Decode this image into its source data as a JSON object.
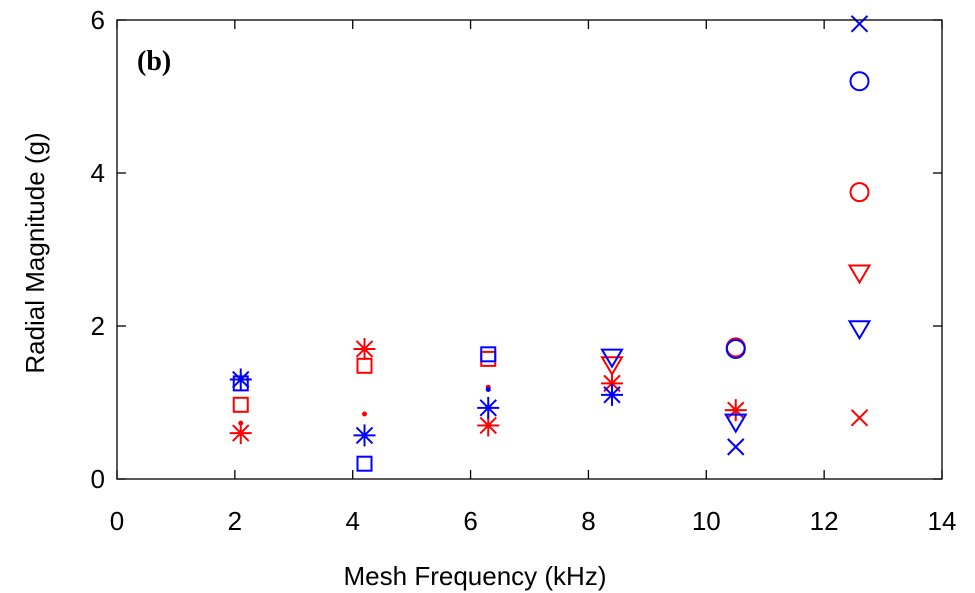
{
  "chart_data": {
    "type": "scatter",
    "panel_label": "(b)",
    "xlabel": "Mesh Frequency (kHz)",
    "ylabel": "Radial Magnitude (g)",
    "xlim": [
      0,
      14
    ],
    "ylim": [
      0,
      6
    ],
    "xticks": [
      0,
      2,
      4,
      6,
      8,
      10,
      12,
      14
    ],
    "yticks": [
      0,
      2,
      4,
      6
    ],
    "grid": false,
    "box": true,
    "colors": {
      "red": "#ff0000",
      "blue": "#0000ff"
    },
    "series": [
      {
        "color": "#ff0000",
        "marker": "asterisk",
        "points": [
          [
            2.1,
            0.6
          ],
          [
            4.2,
            1.7
          ],
          [
            6.3,
            0.7
          ],
          [
            8.4,
            1.25
          ],
          [
            10.5,
            0.9
          ]
        ]
      },
      {
        "color": "#0000ff",
        "marker": "asterisk",
        "points": [
          [
            2.1,
            1.3
          ],
          [
            4.2,
            0.57
          ],
          [
            6.3,
            0.93
          ],
          [
            8.4,
            1.1
          ]
        ]
      },
      {
        "color": "#ff0000",
        "marker": "square",
        "points": [
          [
            2.1,
            0.97
          ],
          [
            4.2,
            1.48
          ],
          [
            6.3,
            1.57
          ]
        ]
      },
      {
        "color": "#0000ff",
        "marker": "square",
        "points": [
          [
            2.1,
            1.25
          ],
          [
            4.2,
            0.2
          ],
          [
            6.3,
            1.63
          ]
        ]
      },
      {
        "color": "#ff0000",
        "marker": "dot",
        "points": [
          [
            2.1,
            0.73
          ],
          [
            4.2,
            0.85
          ],
          [
            6.3,
            1.2
          ]
        ]
      },
      {
        "color": "#0000ff",
        "marker": "dot",
        "points": [
          [
            6.3,
            1.17
          ]
        ]
      },
      {
        "color": "#ff0000",
        "marker": "triangle-down",
        "points": [
          [
            8.4,
            1.5
          ],
          [
            12.6,
            2.7
          ]
        ]
      },
      {
        "color": "#0000ff",
        "marker": "triangle-down",
        "points": [
          [
            8.4,
            1.6
          ],
          [
            10.5,
            0.75
          ],
          [
            12.6,
            1.97
          ]
        ]
      },
      {
        "color": "#ff0000",
        "marker": "circle",
        "points": [
          [
            10.5,
            1.72
          ],
          [
            12.6,
            3.75
          ]
        ]
      },
      {
        "color": "#0000ff",
        "marker": "circle",
        "points": [
          [
            10.5,
            1.7
          ],
          [
            12.6,
            5.2
          ]
        ]
      },
      {
        "color": "#ff0000",
        "marker": "x",
        "points": [
          [
            12.6,
            0.8
          ]
        ]
      },
      {
        "color": "#0000ff",
        "marker": "x",
        "points": [
          [
            10.5,
            0.42
          ],
          [
            12.6,
            5.95
          ]
        ]
      }
    ]
  }
}
